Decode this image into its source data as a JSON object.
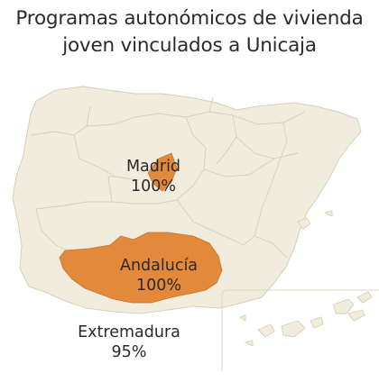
{
  "title": {
    "line1": "Programas autonómicos de vivienda",
    "line2": "joven vinculados a Unicaja"
  },
  "colors": {
    "land": "#f1ecdd",
    "border": "#d6cfb8",
    "highlight": "#e2893b",
    "highlight_border": "#c9742c",
    "text": "#2a2a2a"
  },
  "regions": [
    {
      "name": "Madrid",
      "value": "100%",
      "highlighted": true
    },
    {
      "name": "Andalucía",
      "value": "100%",
      "highlighted": true
    },
    {
      "name": "Extremadura",
      "value": "95%",
      "highlighted": false
    }
  ],
  "inset": "Islas Canarias"
}
